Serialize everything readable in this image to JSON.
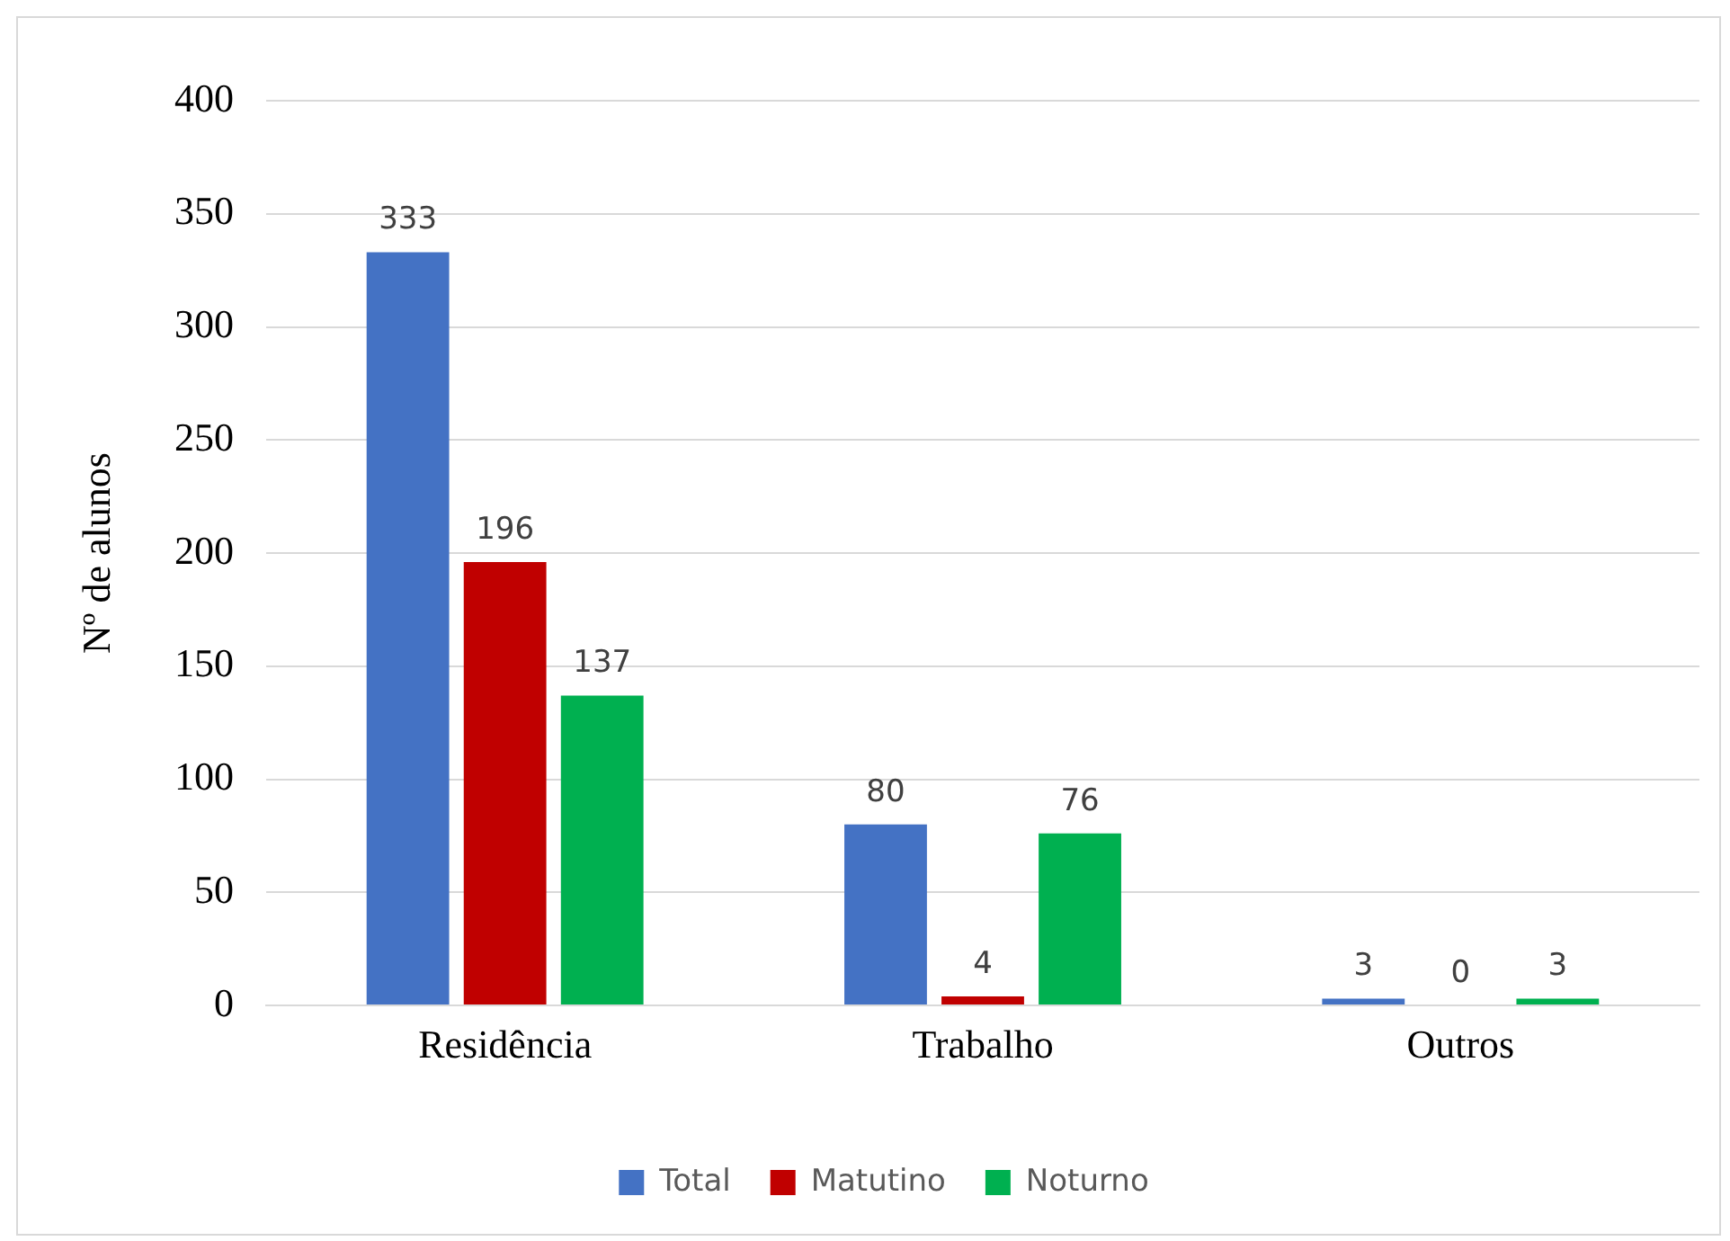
{
  "chart_data": {
    "type": "bar",
    "ylabel": "Nº de alunos",
    "categories": [
      "Residência",
      "Trabalho",
      "Outros"
    ],
    "series": [
      {
        "name": "Total",
        "color": "#4472c4",
        "values": [
          333,
          80,
          3
        ]
      },
      {
        "name": "Matutino",
        "color": "#c00000",
        "values": [
          196,
          4,
          0
        ]
      },
      {
        "name": "Noturno",
        "color": "#00b050",
        "values": [
          137,
          76,
          3
        ]
      }
    ],
    "ylim": [
      0,
      400
    ],
    "yticks": [
      0,
      50,
      100,
      150,
      200,
      250,
      300,
      350,
      400
    ],
    "grid": "y",
    "legend": "bottom",
    "data_labels": true
  }
}
